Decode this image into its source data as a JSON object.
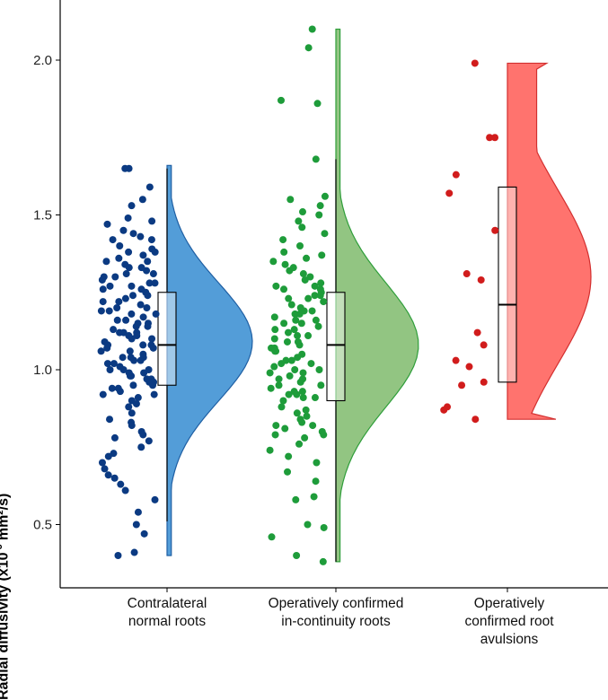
{
  "chart_data": {
    "type": "raincloud",
    "ylabel_main": "Radial diffusivity (x10",
    "ylabel_sup": "-3",
    "ylabel_rest": " mm²/s)",
    "ylim": [
      0.35,
      2.2
    ],
    "yticks": [
      0.5,
      1.0,
      1.5,
      2.0
    ],
    "ytick_labels": [
      "0.5",
      "1.0",
      "1.5",
      "2.0"
    ],
    "categories": [
      {
        "line1": "Contralateral",
        "line2": "normal roots",
        "line3": ""
      },
      {
        "line1": "Operatively confirmed",
        "line2": "in-continuity roots",
        "line3": ""
      },
      {
        "line1": "Operatively",
        "line2": "confirmed root",
        "line3": "avulsions"
      }
    ],
    "series": [
      {
        "name": "Contralateral normal roots",
        "point_color": "#0b3a82",
        "fill_color": "#4a98d6",
        "line_color": "#1f5fa3",
        "box": {
          "q1": 0.95,
          "median": 1.08,
          "q3": 1.25,
          "whisker_low": 0.51,
          "whisker_high": 1.65
        },
        "density_range": [
          0.4,
          1.66
        ],
        "density_peak": 1.09,
        "points": [
          1.65,
          1.65,
          1.59,
          1.55,
          1.53,
          1.49,
          1.48,
          1.47,
          1.45,
          1.44,
          1.43,
          1.42,
          1.4,
          1.39,
          1.38,
          1.37,
          1.36,
          1.35,
          1.34,
          1.33,
          1.32,
          1.31,
          1.3,
          1.29,
          1.28,
          1.27,
          1.26,
          1.25,
          1.24,
          1.23,
          1.22,
          1.21,
          1.2,
          1.19,
          1.18,
          1.17,
          1.16,
          1.15,
          1.14,
          1.13,
          1.12,
          1.11,
          1.1,
          1.09,
          1.08,
          1.07,
          1.06,
          1.05,
          1.04,
          1.03,
          1.02,
          1.01,
          1.0,
          0.99,
          0.98,
          0.97,
          0.96,
          0.95,
          0.94,
          0.93,
          0.92,
          0.91,
          0.9,
          0.88,
          0.86,
          0.84,
          0.83,
          0.82,
          0.8,
          0.79,
          0.78,
          0.77,
          0.75,
          0.73,
          0.72,
          0.7,
          0.68,
          0.66,
          0.65,
          0.63,
          0.61,
          0.58,
          0.54,
          0.5,
          0.47,
          0.41,
          0.4,
          1.3,
          1.26,
          1.22,
          1.18,
          1.14,
          1.12,
          1.1,
          1.08,
          1.06,
          1.04,
          1.02,
          1.0,
          0.98,
          0.96,
          0.94,
          1.35,
          1.33,
          1.28,
          1.24,
          1.2,
          1.16,
          1.12,
          1.08,
          1.04,
          1.0,
          0.97,
          0.92,
          1.42,
          1.38,
          1.31,
          1.27,
          1.19,
          1.15,
          1.11,
          1.07,
          1.03,
          0.99,
          0.95,
          0.89
        ]
      },
      {
        "name": "Operatively confirmed in-continuity roots",
        "point_color": "#1e9c3a",
        "fill_color": "#8cc27b",
        "line_color": "#2f9e3a",
        "box": {
          "q1": 0.9,
          "median": 1.08,
          "q3": 1.25,
          "whisker_low": 0.38,
          "whisker_high": 1.68
        },
        "density_range": [
          0.38,
          2.1
        ],
        "density_peak": 1.08,
        "points": [
          2.1,
          2.04,
          1.87,
          1.86,
          1.68,
          1.56,
          1.55,
          1.53,
          1.51,
          1.5,
          1.48,
          1.46,
          1.44,
          1.42,
          1.4,
          1.38,
          1.36,
          1.35,
          1.34,
          1.32,
          1.3,
          1.29,
          1.28,
          1.27,
          1.26,
          1.25,
          1.24,
          1.23,
          1.22,
          1.21,
          1.2,
          1.19,
          1.18,
          1.17,
          1.16,
          1.15,
          1.14,
          1.13,
          1.12,
          1.11,
          1.1,
          1.09,
          1.08,
          1.07,
          1.06,
          1.05,
          1.04,
          1.03,
          1.02,
          1.01,
          1.0,
          0.99,
          0.98,
          0.97,
          0.96,
          0.95,
          0.94,
          0.93,
          0.92,
          0.91,
          0.9,
          0.88,
          0.86,
          0.84,
          0.82,
          0.81,
          0.8,
          0.78,
          0.76,
          0.74,
          0.72,
          0.7,
          0.67,
          0.64,
          0.59,
          0.58,
          0.5,
          0.49,
          0.46,
          0.4,
          0.38,
          1.31,
          1.27,
          1.23,
          1.19,
          1.15,
          1.11,
          1.07,
          1.03,
          0.99,
          0.95,
          0.91,
          0.87,
          0.83,
          0.79,
          1.33,
          1.24,
          1.16,
          1.09,
          1.02,
          0.97,
          0.92,
          0.85,
          0.79,
          1.37,
          1.26,
          1.18,
          1.13,
          1.06,
          1.0,
          0.93,
          0.82
        ]
      },
      {
        "name": "Operatively confirmed root avulsions",
        "point_color": "#d11c1c",
        "fill_color": "#ff6b66",
        "line_color": "#d32f2f",
        "box": {
          "q1": 0.96,
          "median": 1.21,
          "q3": 1.59,
          "whisker_low": 0.96,
          "whisker_high": 1.59
        },
        "density_range": [
          0.84,
          1.99
        ],
        "density_peak": 1.3,
        "points": [
          1.99,
          1.75,
          1.75,
          1.63,
          1.57,
          1.45,
          1.31,
          1.29,
          1.12,
          1.08,
          1.03,
          1.01,
          0.96,
          0.95,
          0.88,
          0.87,
          0.84
        ]
      }
    ]
  }
}
